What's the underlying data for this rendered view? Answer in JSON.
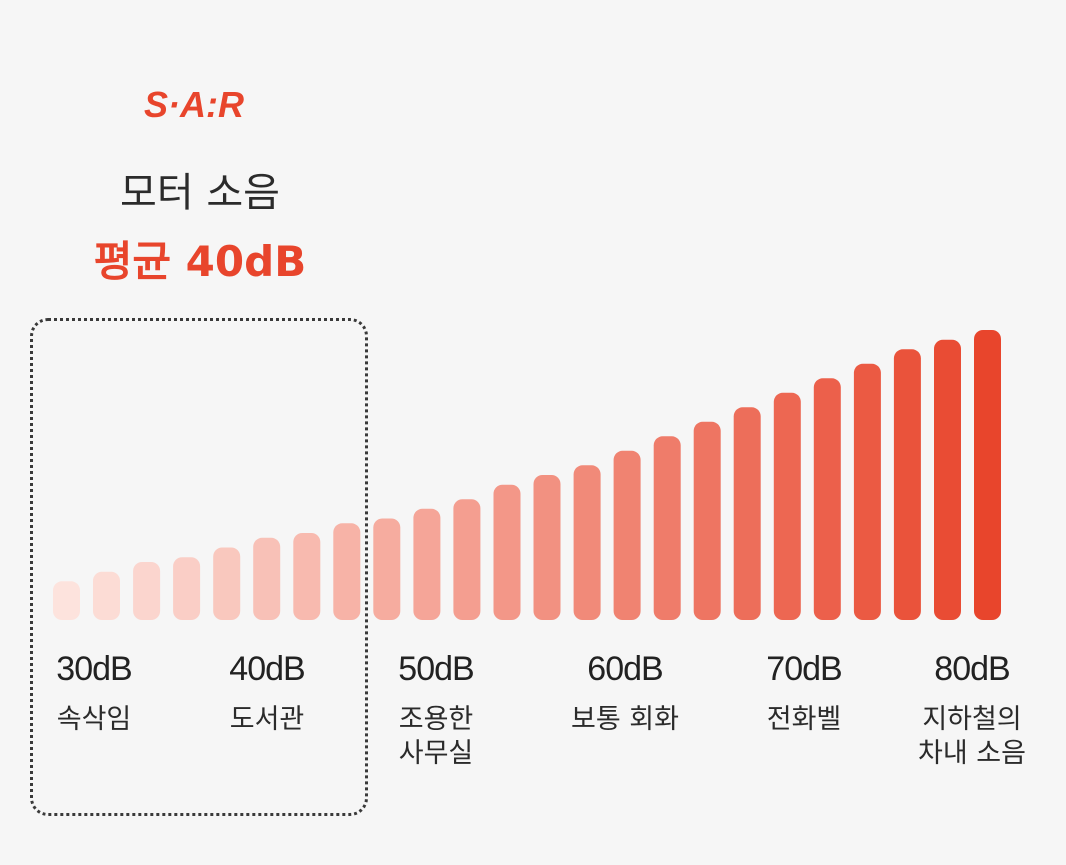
{
  "logo": "S·A:R",
  "title": "모터 소음",
  "subtitle": "평균 40dB",
  "colors": {
    "accent": "#e8452c",
    "bar_light": "#fde3dd",
    "bar_dark": "#e8452c"
  },
  "levels": [
    {
      "db": "30dB",
      "desc": "속삭임"
    },
    {
      "db": "40dB",
      "desc": "도서관"
    },
    {
      "db": "50dB",
      "desc": "조용한\n사무실"
    },
    {
      "db": "60dB",
      "desc": "보통 회화"
    },
    {
      "db": "70dB",
      "desc": "전화벨"
    },
    {
      "db": "80dB",
      "desc": "지하철의\n차내 소음"
    }
  ],
  "chart_data": {
    "type": "bar",
    "title": "모터 소음",
    "subtitle": "평균 40dB",
    "tick_labels": [
      "30dB",
      "40dB",
      "50dB",
      "60dB",
      "70dB",
      "80dB"
    ],
    "values": [
      28,
      30,
      32,
      33,
      35,
      37,
      38,
      40,
      41,
      43,
      45,
      48,
      50,
      52,
      55,
      58,
      61,
      64,
      67,
      70,
      73,
      76,
      78,
      80
    ],
    "highlight_range": [
      "30dB",
      "40dB"
    ],
    "grid": false,
    "legend": "none"
  }
}
